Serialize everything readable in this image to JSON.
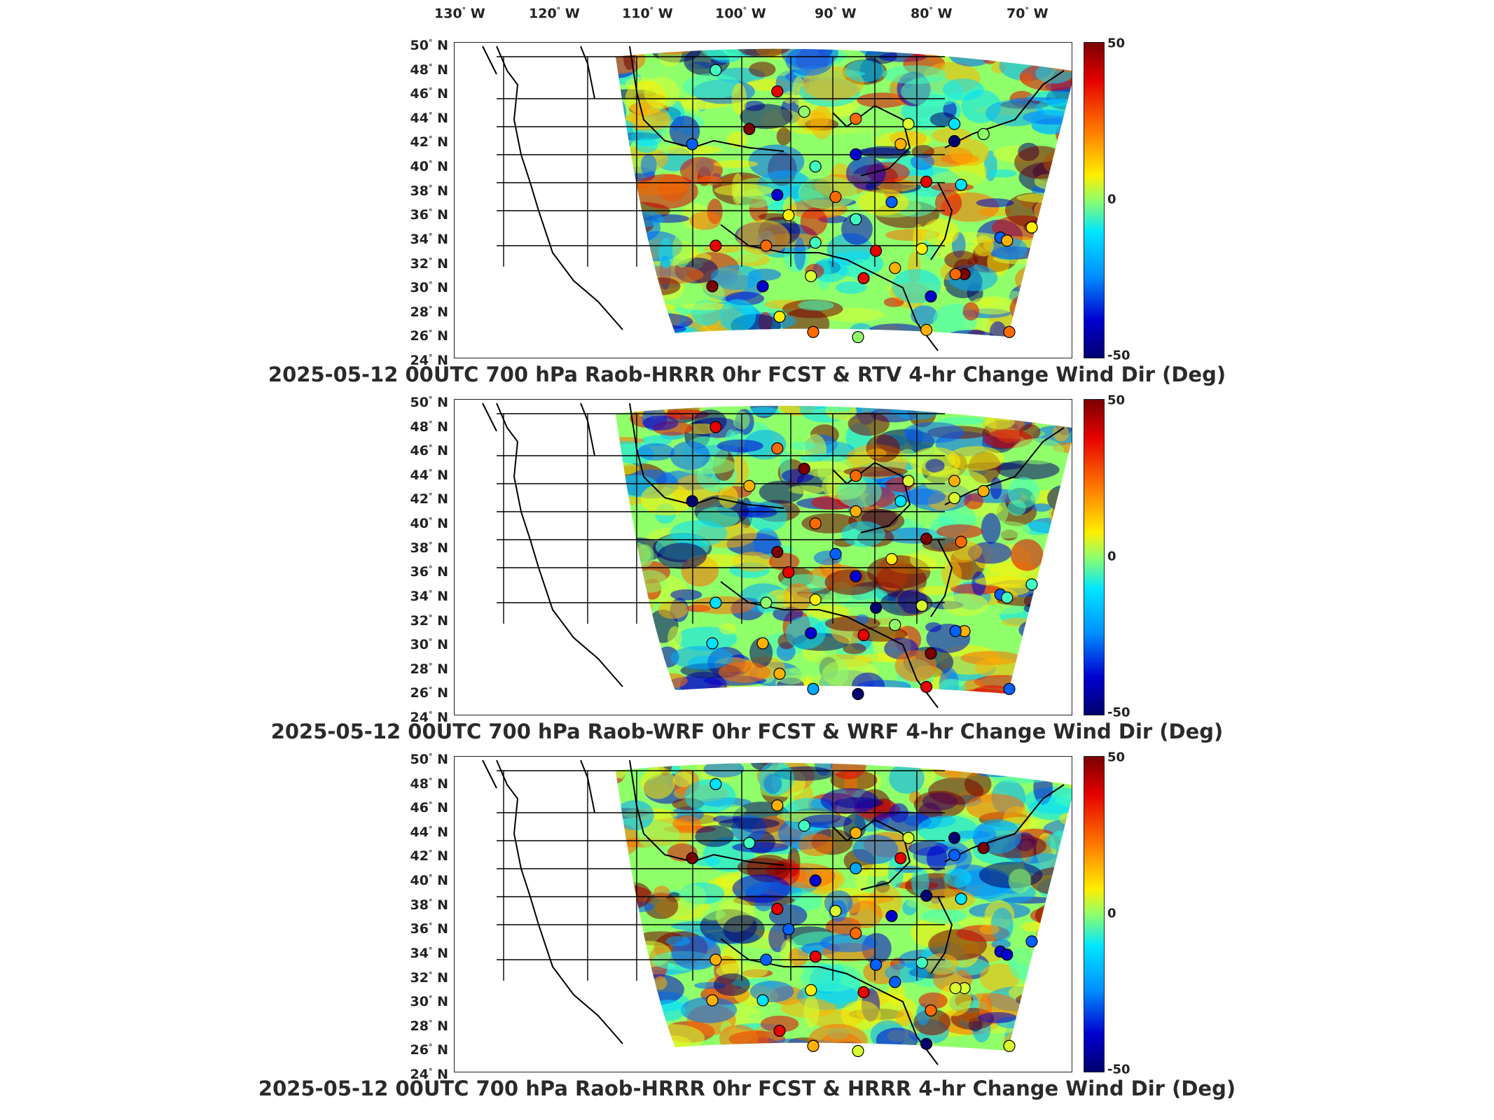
{
  "longitude_labels": [
    {
      "deg": "130",
      "hemi": "W"
    },
    {
      "deg": "120",
      "hemi": "W"
    },
    {
      "deg": "110",
      "hemi": "W"
    },
    {
      "deg": "100",
      "hemi": "W"
    },
    {
      "deg": "90",
      "hemi": "W"
    },
    {
      "deg": "80",
      "hemi": "W"
    },
    {
      "deg": "70",
      "hemi": "W"
    }
  ],
  "latitude_labels": [
    {
      "deg": "50",
      "hemi": "N"
    },
    {
      "deg": "48",
      "hemi": "N"
    },
    {
      "deg": "46",
      "hemi": "N"
    },
    {
      "deg": "44",
      "hemi": "N"
    },
    {
      "deg": "42",
      "hemi": "N"
    },
    {
      "deg": "40",
      "hemi": "N"
    },
    {
      "deg": "38",
      "hemi": "N"
    },
    {
      "deg": "36",
      "hemi": "N"
    },
    {
      "deg": "34",
      "hemi": "N"
    },
    {
      "deg": "32",
      "hemi": "N"
    },
    {
      "deg": "30",
      "hemi": "N"
    },
    {
      "deg": "28",
      "hemi": "N"
    },
    {
      "deg": "26",
      "hemi": "N"
    },
    {
      "deg": "24",
      "hemi": "N"
    }
  ],
  "colorbar": {
    "max": "50",
    "mid": "0",
    "min": "-50"
  },
  "panels": [
    {
      "caption": "2025-05-12 00UTC 700 hPa Raob-HRRR 0hr FCST & RTV 4-hr Change Wind Dir (Deg)"
    },
    {
      "caption": "2025-05-12 00UTC 700 hPa Raob-WRF 0hr FCST & WRF 4-hr Change Wind Dir (Deg)"
    },
    {
      "caption": "2025-05-12 00UTC 700 hPa Raob-HRRR 0hr FCST & HRRR 4-hr Change Wind Dir (Deg)"
    }
  ],
  "colors": {
    "max": "#7a0000",
    "high": "#ff7a00",
    "zero": "#8fff6a",
    "low": "#0090ff",
    "min": "#000070"
  }
}
